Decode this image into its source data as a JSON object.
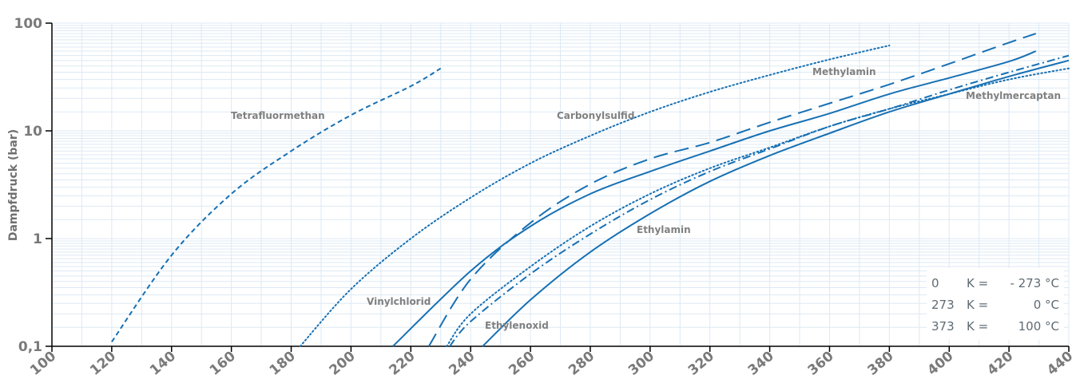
{
  "chart_data": {
    "type": "line",
    "title": "",
    "xlabel": "",
    "ylabel": "Dampfdruck (bar)",
    "xlim": [
      100,
      440
    ],
    "ylim": [
      0.1,
      100
    ],
    "y_scale": "log",
    "x_ticks": [
      "100",
      "120",
      "140",
      "160",
      "180",
      "200",
      "220",
      "240",
      "260",
      "280",
      "300",
      "320",
      "340",
      "360",
      "380",
      "400",
      "420",
      "440"
    ],
    "y_ticks": [
      "0,1",
      "1",
      "10",
      "100"
    ],
    "grid": true,
    "colors": {
      "series": "#1770b3",
      "grid": "#dde9f4",
      "axis": "#000000",
      "legend_bg": "#ffffff"
    },
    "series": [
      {
        "name": "Tetrafluormethan",
        "style": "dashed-fine",
        "x": [
          120,
          140,
          160,
          180,
          200,
          220,
          230
        ],
        "y": [
          0.11,
          0.7,
          2.6,
          6.5,
          14,
          26,
          38
        ]
      },
      {
        "name": "Carbonylsulfid",
        "style": "dotted",
        "x": [
          183,
          200,
          220,
          240,
          260,
          280,
          300,
          320,
          340,
          360,
          380
        ],
        "y": [
          0.1,
          0.34,
          1.0,
          2.4,
          5,
          9,
          15,
          23,
          33,
          46,
          62
        ]
      },
      {
        "name": "Methylamin",
        "style": "dashed-long",
        "x": [
          226,
          240,
          260,
          280,
          300,
          320,
          340,
          360,
          380,
          400,
          420,
          429
        ],
        "y": [
          0.1,
          0.42,
          1.4,
          3.2,
          5.5,
          7.8,
          12,
          18,
          27,
          42,
          66,
          80
        ]
      },
      {
        "name": "Vinylchlorid",
        "style": "solid",
        "x": [
          214,
          240,
          260,
          280,
          300,
          320,
          340,
          360,
          380,
          400,
          420,
          429
        ],
        "y": [
          0.1,
          0.5,
          1.3,
          2.6,
          4.2,
          6.5,
          10,
          14.5,
          22,
          31,
          44,
          55
        ]
      },
      {
        "name": "Methylmercaptan",
        "style": "dotted",
        "x": [
          232,
          240,
          260,
          280,
          300,
          320,
          340,
          360,
          380,
          400,
          420,
          440
        ],
        "y": [
          0.1,
          0.2,
          0.55,
          1.3,
          2.6,
          4.5,
          7,
          11,
          16,
          22,
          30,
          38
        ]
      },
      {
        "name": "Ethylenoxid",
        "style": "dash-dot",
        "x": [
          233,
          240,
          260,
          280,
          300,
          320,
          340,
          360,
          380,
          400,
          420,
          440
        ],
        "y": [
          0.1,
          0.17,
          0.47,
          1.1,
          2.3,
          4.2,
          6.8,
          11,
          16,
          24,
          35,
          50
        ]
      },
      {
        "name": "Ethylamin",
        "style": "solid",
        "x": [
          244,
          260,
          280,
          300,
          320,
          340,
          360,
          380,
          400,
          420,
          440
        ],
        "y": [
          0.1,
          0.27,
          0.75,
          1.7,
          3.4,
          5.9,
          9.5,
          15,
          22,
          32,
          45
        ]
      }
    ],
    "annotations": {
      "Tetrafluormethan": "Tetrafluormethan",
      "Carbonylsulfid": "Carbonylsulfid",
      "Methylamin": "Methylamin",
      "Methylmercaptan": "Methylmercaptan",
      "Vinylchlorid": "Vinylchlorid",
      "Ethylenoxid": "Ethylenoxid",
      "Ethylamin": "Ethylamin"
    },
    "legend": [
      [
        "0",
        "K =",
        "- 273 °C"
      ],
      [
        "273",
        "K =",
        "0 °C"
      ],
      [
        "373",
        "K =",
        "100 °C"
      ]
    ]
  }
}
